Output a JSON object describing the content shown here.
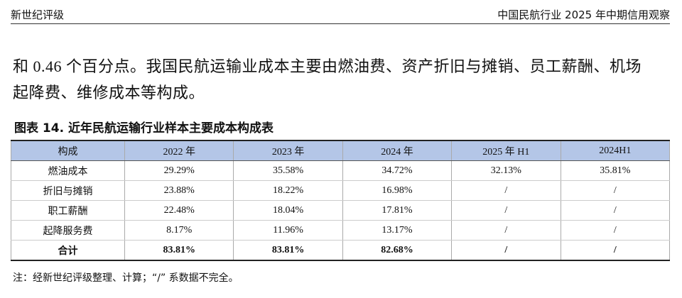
{
  "header": {
    "left": "新世纪评级",
    "right": "中国民航行业 2025 年中期信用观察"
  },
  "paragraph": {
    "lines": [
      "和 0.46 个百分点。我国民航运输业成本主要由燃油费、资产折旧与摊销、员工薪酬、机场",
      "起降费、维修成本等构成。"
    ]
  },
  "table": {
    "caption": "图表 14.  近年民航运输行业样本主要成本构成表",
    "columns": [
      "构成",
      "2022 年",
      "2023 年",
      "2024 年",
      "2025 年 H1",
      "2024H1"
    ],
    "rows": [
      [
        "燃油成本",
        "29.29%",
        "35.58%",
        "34.72%",
        "32.13%",
        "35.81%"
      ],
      [
        "折旧与摊销",
        "23.88%",
        "18.22%",
        "16.98%",
        "/",
        "/"
      ],
      [
        "职工薪酬",
        "22.48%",
        "18.04%",
        "17.81%",
        "/",
        "/"
      ],
      [
        "起降服务费",
        "8.17%",
        "11.96%",
        "13.17%",
        "/",
        "/"
      ],
      [
        "合计",
        "83.81%",
        "83.81%",
        "82.68%",
        "/",
        "/"
      ]
    ]
  },
  "note": "注：经新世纪评级整理、计算；“/” 系数据不完全。"
}
